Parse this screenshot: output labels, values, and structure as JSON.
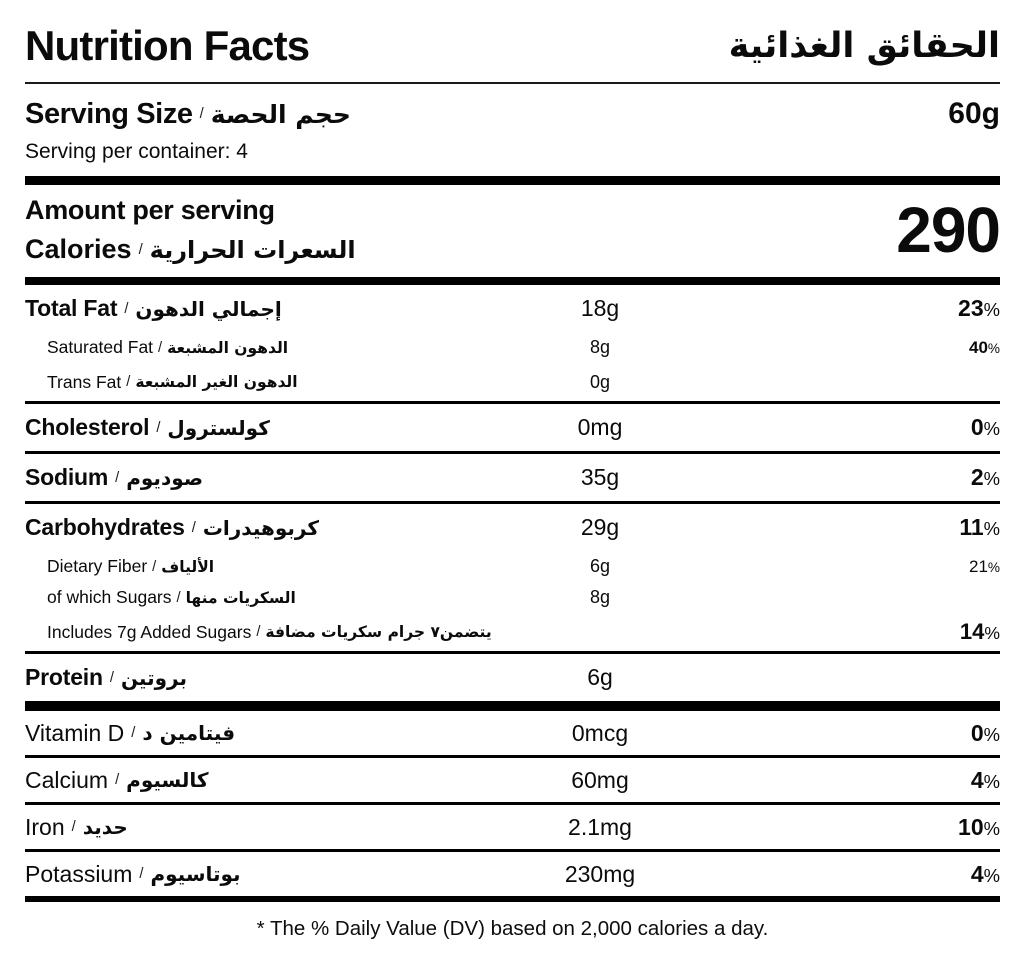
{
  "header": {
    "title_en": "Nutrition Facts",
    "title_ar": "الحقائق الغذائية"
  },
  "serving": {
    "label_en": "Serving Size",
    "label_ar": "حجم الحصة",
    "size": "60g",
    "per_container": "Serving per container: 4"
  },
  "calories": {
    "amount_label": "Amount per serving",
    "label_en": "Calories",
    "label_ar": "السعرات الحرارية",
    "value": "290"
  },
  "symbols": {
    "slash": "/",
    "percent": "%"
  },
  "rows": [
    {
      "en": "Total Fat",
      "ar": "إجمالي الدهون",
      "value": "18g",
      "dv": "23"
    },
    {
      "en": "Saturated Fat",
      "ar": "الدهون المشبعة",
      "value": "8g",
      "dv": "40"
    },
    {
      "en": "Trans Fat",
      "ar": "الدهون الغير المشبعة",
      "value": "0g",
      "dv": null
    },
    {
      "en": "Cholesterol",
      "ar": "كولسترول",
      "value": "0mg",
      "dv": "0"
    },
    {
      "en": "Sodium",
      "ar": "صوديوم",
      "value": "35g",
      "dv": "2"
    },
    {
      "en": "Carbohydrates",
      "ar": "كربوهيدرات",
      "value": "29g",
      "dv": "11"
    },
    {
      "en": "Dietary Fiber",
      "ar": "الألياف",
      "value": "6g",
      "dv": "21"
    },
    {
      "en": "of which Sugars",
      "ar": "السكريات منها",
      "value": "8g",
      "dv": null
    },
    {
      "en": "Includes 7g Added Sugars",
      "ar": "يتضمن٧ جرام سكريات مضافة",
      "value": null,
      "dv": "14"
    },
    {
      "en": "Protein",
      "ar": "بروتين",
      "value": "6g",
      "dv": null
    },
    {
      "en": "Vitamin D",
      "ar": "فيتامين د",
      "value": "0mcg",
      "dv": "0"
    },
    {
      "en": "Calcium",
      "ar": "كالسيوم",
      "value": "60mg",
      "dv": "4"
    },
    {
      "en": "Iron",
      "ar": "حديد",
      "value": "2.1mg",
      "dv": "10"
    },
    {
      "en": "Potassium",
      "ar": "بوتاسيوم",
      "value": "230mg",
      "dv": "4"
    }
  ],
  "footer": {
    "note": "* The % Daily Value (DV) based on 2,000 calories a day."
  }
}
